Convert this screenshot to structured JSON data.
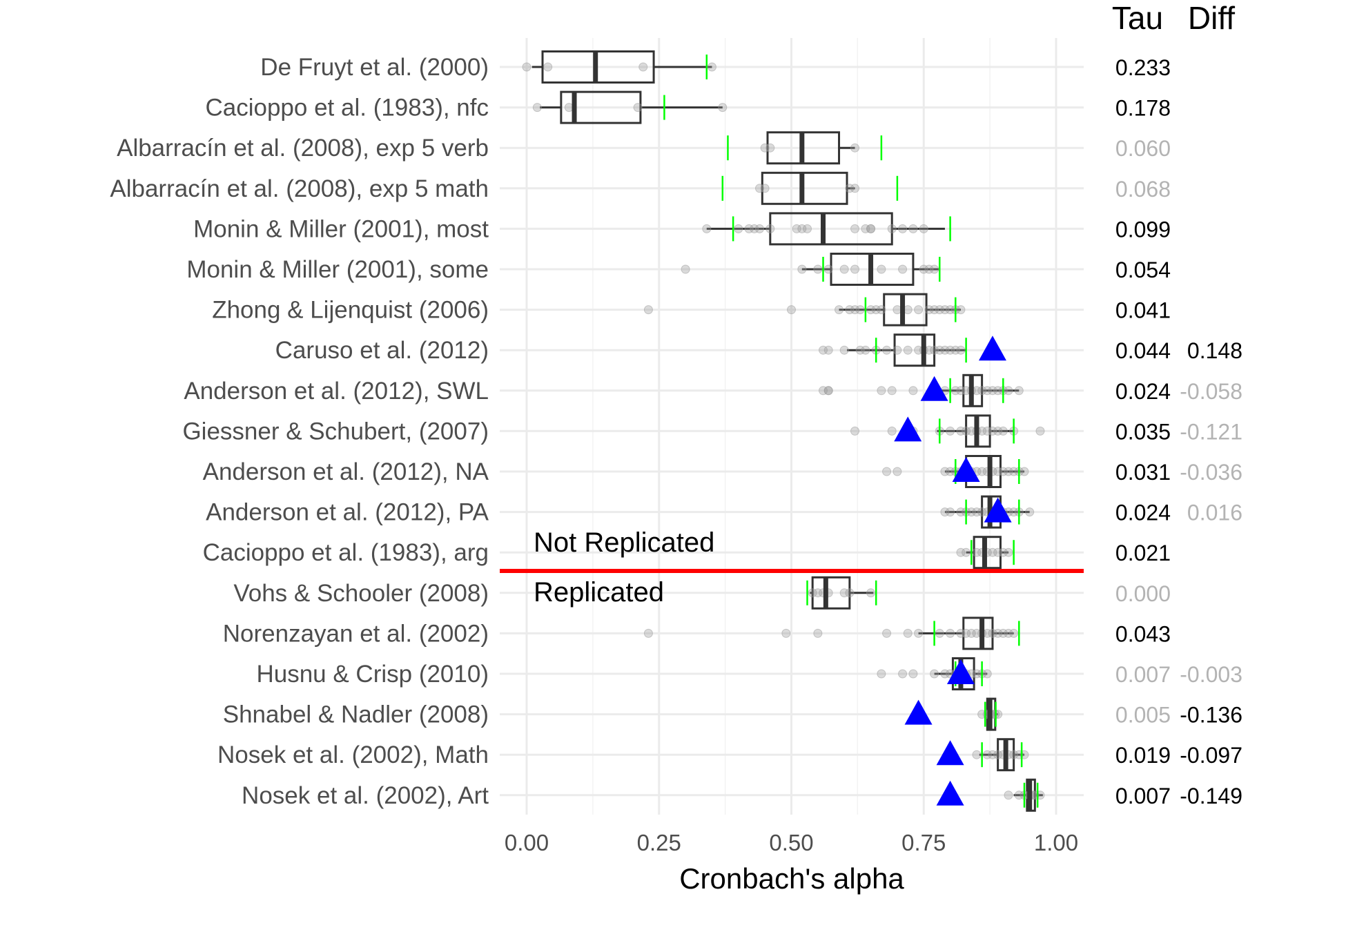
{
  "chart_data": {
    "type": "boxplot",
    "xlabel": "Cronbach's alpha",
    "xlim": [
      -0.05,
      1.05
    ],
    "x_ticks": [
      0.0,
      0.25,
      0.5,
      0.75,
      1.0
    ],
    "x_tick_labels": [
      "0.00",
      "0.25",
      "0.50",
      "0.75",
      "1.00"
    ],
    "grid": true,
    "column_headers": [
      "Tau",
      "Diff"
    ],
    "annotations": {
      "above_line": "Not Replicated",
      "below_line": "Replicated"
    },
    "colors": {
      "threshold_line": "#ff0000",
      "original_alpha": "#0000ff",
      "interval_tick": "#00ff00",
      "box": "#333333",
      "point": "#999999",
      "emphasis_text": "#000000",
      "muted_text": "#b3b3b3"
    },
    "studies": [
      {
        "label": "De Fruyt et al. (2000)",
        "q1": 0.03,
        "median": 0.13,
        "q3": 0.24,
        "whisker_low": 0.01,
        "whisker_high": 0.35,
        "interval": [
          null,
          0.34
        ],
        "points": [
          0.0,
          0.04,
          0.22,
          0.35
        ],
        "original": null,
        "tau": "0.233",
        "diff": "",
        "tau_strong": true,
        "diff_strong": true
      },
      {
        "label": "Cacioppo et al. (1983), nfc",
        "q1": 0.065,
        "median": 0.09,
        "q3": 0.215,
        "whisker_low": 0.025,
        "whisker_high": 0.37,
        "interval": [
          null,
          0.26
        ],
        "points": [
          0.02,
          0.08,
          0.21,
          0.37
        ],
        "original": null,
        "tau": "0.178",
        "diff": "",
        "tau_strong": true,
        "diff_strong": true
      },
      {
        "label": "Albarracín et al. (2008), exp 5 verb",
        "q1": 0.455,
        "median": 0.52,
        "q3": 0.59,
        "whisker_low": 0.455,
        "whisker_high": 0.62,
        "interval": [
          0.38,
          0.67
        ],
        "points": [
          0.45,
          0.46,
          0.62
        ],
        "original": null,
        "tau": "0.060",
        "diff": "",
        "tau_strong": false,
        "diff_strong": true
      },
      {
        "label": "Albarracín et al. (2008), exp 5 math",
        "q1": 0.445,
        "median": 0.52,
        "q3": 0.605,
        "whisker_low": 0.445,
        "whisker_high": 0.62,
        "interval": [
          0.37,
          0.7
        ],
        "points": [
          0.44,
          0.45,
          0.61,
          0.62
        ],
        "original": null,
        "tau": "0.068",
        "diff": "",
        "tau_strong": false,
        "diff_strong": true
      },
      {
        "label": "Monin & Miller (2001), most",
        "q1": 0.46,
        "median": 0.56,
        "q3": 0.69,
        "whisker_low": 0.34,
        "whisker_high": 0.79,
        "interval": [
          0.39,
          0.8
        ],
        "points": [
          0.34,
          0.4,
          0.42,
          0.43,
          0.44,
          0.46,
          0.51,
          0.52,
          0.53,
          0.62,
          0.64,
          0.65,
          0.65,
          0.69,
          0.71,
          0.73,
          0.75
        ],
        "original": null,
        "tau": "0.099",
        "diff": "",
        "tau_strong": true,
        "diff_strong": true
      },
      {
        "label": "Monin & Miller (2001), some",
        "q1": 0.575,
        "median": 0.65,
        "q3": 0.73,
        "whisker_low": 0.52,
        "whisker_high": 0.78,
        "interval": [
          0.56,
          0.78
        ],
        "points": [
          0.3,
          0.52,
          0.55,
          0.57,
          0.6,
          0.62,
          0.67,
          0.71,
          0.75,
          0.76,
          0.77
        ],
        "original": null,
        "tau": "0.054",
        "diff": "",
        "tau_strong": true,
        "diff_strong": true
      },
      {
        "label": "Zhong & Lijenquist (2006)",
        "q1": 0.675,
        "median": 0.71,
        "q3": 0.755,
        "whisker_low": 0.59,
        "whisker_high": 0.82,
        "interval": [
          0.64,
          0.81
        ],
        "points": [
          0.23,
          0.5,
          0.59,
          0.61,
          0.62,
          0.63,
          0.65,
          0.66,
          0.67,
          0.7,
          0.72,
          0.74,
          0.76,
          0.77,
          0.78,
          0.79,
          0.8,
          0.81,
          0.82
        ],
        "original": null,
        "tau": "0.041",
        "diff": "",
        "tau_strong": true,
        "diff_strong": true
      },
      {
        "label": "Caruso et al. (2012)",
        "q1": 0.695,
        "median": 0.75,
        "q3": 0.77,
        "whisker_low": 0.605,
        "whisker_high": 0.83,
        "interval": [
          0.66,
          0.83
        ],
        "points": [
          0.56,
          0.57,
          0.6,
          0.63,
          0.64,
          0.66,
          0.68,
          0.7,
          0.72,
          0.74,
          0.75,
          0.76,
          0.77,
          0.78,
          0.79,
          0.8,
          0.81,
          0.82
        ],
        "original": 0.88,
        "tau": "0.044",
        "diff": "0.148",
        "tau_strong": true,
        "diff_strong": true
      },
      {
        "label": "Anderson et al. (2012), SWL",
        "q1": 0.825,
        "median": 0.84,
        "q3": 0.86,
        "whisker_low": 0.775,
        "whisker_high": 0.93,
        "interval": [
          0.8,
          0.9
        ],
        "points": [
          0.56,
          0.57,
          0.57,
          0.67,
          0.69,
          0.73,
          0.79,
          0.81,
          0.82,
          0.83,
          0.84,
          0.85,
          0.86,
          0.87,
          0.88,
          0.89,
          0.9,
          0.91,
          0.93
        ],
        "original": 0.77,
        "tau": "0.024",
        "diff": "-0.058",
        "tau_strong": true,
        "diff_strong": false
      },
      {
        "label": "Giessner & Schubert, (2007)",
        "q1": 0.83,
        "median": 0.85,
        "q3": 0.875,
        "whisker_low": 0.775,
        "whisker_high": 0.92,
        "interval": [
          0.78,
          0.92
        ],
        "points": [
          0.62,
          0.69,
          0.73,
          0.78,
          0.8,
          0.82,
          0.83,
          0.84,
          0.85,
          0.86,
          0.87,
          0.88,
          0.89,
          0.9,
          0.92,
          0.97
        ],
        "original": 0.72,
        "tau": "0.035",
        "diff": "-0.121",
        "tau_strong": true,
        "diff_strong": false
      },
      {
        "label": "Anderson et al. (2012), NA",
        "q1": 0.83,
        "median": 0.875,
        "q3": 0.895,
        "whisker_low": 0.79,
        "whisker_high": 0.94,
        "interval": [
          0.81,
          0.93
        ],
        "points": [
          0.68,
          0.7,
          0.79,
          0.8,
          0.81,
          0.82,
          0.83,
          0.84,
          0.85,
          0.86,
          0.87,
          0.88,
          0.89,
          0.9,
          0.91,
          0.92,
          0.93,
          0.94
        ],
        "original": 0.83,
        "tau": "0.031",
        "diff": "-0.036",
        "tau_strong": true,
        "diff_strong": false
      },
      {
        "label": "Anderson et al. (2012), PA",
        "q1": 0.86,
        "median": 0.875,
        "q3": 0.895,
        "whisker_low": 0.79,
        "whisker_high": 0.95,
        "interval": [
          0.83,
          0.93
        ],
        "points": [
          0.79,
          0.8,
          0.82,
          0.83,
          0.84,
          0.85,
          0.86,
          0.87,
          0.88,
          0.89,
          0.9,
          0.91,
          0.92,
          0.93,
          0.95
        ],
        "original": 0.89,
        "tau": "0.024",
        "diff": "0.016",
        "tau_strong": true,
        "diff_strong": false
      },
      {
        "label": "Cacioppo et al. (1983), arg",
        "q1": 0.845,
        "median": 0.865,
        "q3": 0.895,
        "whisker_low": 0.83,
        "whisker_high": 0.91,
        "interval": [
          0.84,
          0.92
        ],
        "points": [
          0.82,
          0.83,
          0.85,
          0.86,
          0.87,
          0.88,
          0.89,
          0.9,
          0.91
        ],
        "original": null,
        "tau": "0.021",
        "diff": "",
        "tau_strong": true,
        "diff_strong": true
      },
      {
        "label": "Vohs & Schooler (2008)",
        "q1": 0.54,
        "median": 0.565,
        "q3": 0.61,
        "whisker_low": 0.535,
        "whisker_high": 0.655,
        "interval": [
          0.53,
          0.66
        ],
        "points": [
          0.54,
          0.55,
          0.56,
          0.57,
          0.6,
          0.61,
          0.65
        ],
        "original": null,
        "tau": "0.000",
        "diff": "",
        "tau_strong": false,
        "diff_strong": true
      },
      {
        "label": "Norenzayan et al. (2002)",
        "q1": 0.825,
        "median": 0.86,
        "q3": 0.88,
        "whisker_low": 0.74,
        "whisker_high": 0.92,
        "interval": [
          0.77,
          0.93
        ],
        "points": [
          0.23,
          0.49,
          0.55,
          0.68,
          0.72,
          0.74,
          0.78,
          0.8,
          0.82,
          0.83,
          0.84,
          0.85,
          0.86,
          0.87,
          0.88,
          0.89,
          0.9,
          0.91,
          0.92
        ],
        "original": null,
        "tau": "0.043",
        "diff": "",
        "tau_strong": true,
        "diff_strong": true
      },
      {
        "label": "Husnu & Crisp (2010)",
        "q1": 0.805,
        "median": 0.82,
        "q3": 0.845,
        "whisker_low": 0.77,
        "whisker_high": 0.87,
        "interval": [
          0.81,
          0.86
        ],
        "points": [
          0.67,
          0.71,
          0.73,
          0.77,
          0.79,
          0.8,
          0.81,
          0.82,
          0.83,
          0.84,
          0.85,
          0.86,
          0.87
        ],
        "original": 0.82,
        "tau": "0.007",
        "diff": "-0.003",
        "tau_strong": false,
        "diff_strong": false
      },
      {
        "label": "Shnabel & Nadler (2008)",
        "q1": 0.87,
        "median": 0.875,
        "q3": 0.885,
        "whisker_low": 0.865,
        "whisker_high": 0.89,
        "interval": [
          0.866,
          0.886
        ],
        "points": [
          0.86,
          0.87,
          0.875,
          0.88,
          0.885,
          0.89
        ],
        "original": 0.74,
        "tau": "0.005",
        "diff": "-0.136",
        "tau_strong": false,
        "diff_strong": true
      },
      {
        "label": "Nosek et al. (2002), Math",
        "q1": 0.89,
        "median": 0.905,
        "q3": 0.92,
        "whisker_low": 0.855,
        "whisker_high": 0.94,
        "interval": [
          0.86,
          0.935
        ],
        "points": [
          0.85,
          0.87,
          0.88,
          0.89,
          0.9,
          0.91,
          0.92,
          0.93,
          0.94
        ],
        "original": 0.8,
        "tau": "0.019",
        "diff": "-0.097",
        "tau_strong": true,
        "diff_strong": true
      },
      {
        "label": "Nosek et al. (2002), Art",
        "q1": 0.945,
        "median": 0.95,
        "q3": 0.96,
        "whisker_low": 0.92,
        "whisker_high": 0.975,
        "interval": [
          0.94,
          0.965
        ],
        "points": [
          0.91,
          0.93,
          0.94,
          0.95,
          0.955,
          0.96,
          0.97
        ],
        "original": 0.8,
        "tau": "0.007",
        "diff": "-0.149",
        "tau_strong": true,
        "diff_strong": true
      }
    ]
  }
}
